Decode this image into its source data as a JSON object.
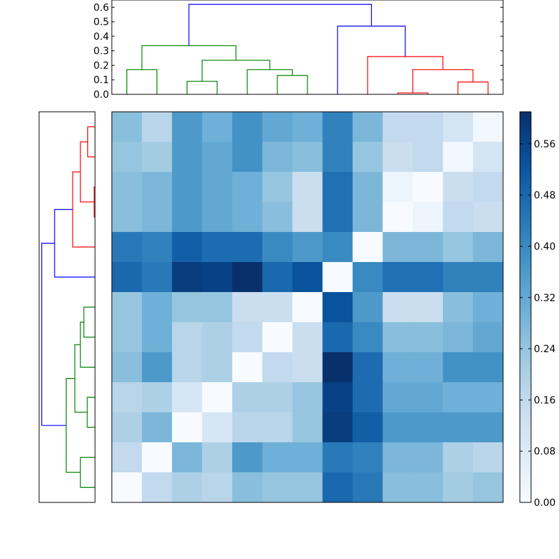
{
  "chart_data": {
    "type": "heatmap",
    "title": "",
    "matrix": [
      [
        0.26,
        0.18,
        0.36,
        0.3,
        0.38,
        0.32,
        0.3,
        0.42,
        0.28,
        0.16,
        0.16,
        0.11,
        0.02
      ],
      [
        0.24,
        0.22,
        0.36,
        0.32,
        0.38,
        0.28,
        0.26,
        0.42,
        0.24,
        0.14,
        0.16,
        0.02,
        0.11
      ],
      [
        0.26,
        0.28,
        0.36,
        0.32,
        0.3,
        0.24,
        0.14,
        0.46,
        0.28,
        0.03,
        0.0,
        0.14,
        0.16
      ],
      [
        0.26,
        0.28,
        0.36,
        0.32,
        0.3,
        0.26,
        0.14,
        0.46,
        0.28,
        0.0,
        0.03,
        0.16,
        0.14
      ],
      [
        0.44,
        0.42,
        0.5,
        0.47,
        0.47,
        0.4,
        0.36,
        0.4,
        0.0,
        0.28,
        0.28,
        0.24,
        0.28
      ],
      [
        0.48,
        0.44,
        0.58,
        0.57,
        0.61,
        0.48,
        0.53,
        0.0,
        0.4,
        0.46,
        0.46,
        0.42,
        0.42
      ],
      [
        0.24,
        0.3,
        0.24,
        0.24,
        0.14,
        0.14,
        0.0,
        0.53,
        0.36,
        0.14,
        0.14,
        0.26,
        0.3
      ],
      [
        0.24,
        0.3,
        0.18,
        0.2,
        0.16,
        0.0,
        0.14,
        0.48,
        0.4,
        0.26,
        0.26,
        0.28,
        0.32
      ],
      [
        0.26,
        0.36,
        0.18,
        0.2,
        0.0,
        0.16,
        0.14,
        0.61,
        0.47,
        0.3,
        0.3,
        0.38,
        0.38
      ],
      [
        0.18,
        0.2,
        0.1,
        0.0,
        0.2,
        0.2,
        0.24,
        0.57,
        0.47,
        0.32,
        0.32,
        0.3,
        0.3
      ],
      [
        0.2,
        0.28,
        0.0,
        0.1,
        0.18,
        0.18,
        0.24,
        0.58,
        0.5,
        0.36,
        0.36,
        0.36,
        0.36
      ],
      [
        0.16,
        0.0,
        0.28,
        0.2,
        0.36,
        0.3,
        0.3,
        0.44,
        0.42,
        0.28,
        0.28,
        0.2,
        0.18
      ],
      [
        0.0,
        0.16,
        0.2,
        0.18,
        0.26,
        0.24,
        0.24,
        0.48,
        0.44,
        0.26,
        0.26,
        0.22,
        0.24
      ]
    ],
    "colorbar": {
      "min": 0.0,
      "max": 0.61,
      "ticks": [
        0.0,
        0.08,
        0.16,
        0.24,
        0.32,
        0.4,
        0.48,
        0.56
      ],
      "tick_labels": [
        "0.00",
        "0.08",
        "0.16",
        "0.24",
        "0.32",
        "0.40",
        "0.48",
        "0.56"
      ],
      "colormap": "Blues"
    },
    "top_dendrogram": {
      "ylim": [
        0.0,
        0.65
      ],
      "ticks": [
        0.0,
        0.1,
        0.2,
        0.3,
        0.4,
        0.5,
        0.6
      ],
      "tick_labels": [
        "0.0",
        "0.1",
        "0.2",
        "0.3",
        "0.4",
        "0.5",
        "0.6"
      ],
      "merges": [
        {
          "x1": 0.5,
          "x2": 1.5,
          "h1": 0,
          "h2": 0,
          "h": 0.17,
          "color": "#008000"
        },
        {
          "x1": 2.5,
          "x2": 3.5,
          "h1": 0,
          "h2": 0,
          "h": 0.09,
          "color": "#008000"
        },
        {
          "x1": 5.5,
          "x2": 6.5,
          "h1": 0,
          "h2": 0,
          "h": 0.13,
          "color": "#008000"
        },
        {
          "x1": 4.5,
          "x2": 6.0,
          "h1": 0,
          "h2": 0.13,
          "h": 0.17,
          "color": "#008000"
        },
        {
          "x1": 3.0,
          "x2": 5.25,
          "h1": 0.09,
          "h2": 0.17,
          "h": 0.235,
          "color": "#008000"
        },
        {
          "x1": 1.0,
          "x2": 4.125,
          "h1": 0.17,
          "h2": 0.235,
          "h": 0.335,
          "color": "#008000"
        },
        {
          "x1": 9.5,
          "x2": 10.5,
          "h1": 0,
          "h2": 0,
          "h": 0.01,
          "color": "#ff0000"
        },
        {
          "x1": 10.0,
          "x2": 12.0,
          "h1": 0.01,
          "h2": 0.085,
          "h": 0.17,
          "color": "#ff0000"
        },
        {
          "x1": 11.5,
          "x2": 12.5,
          "h1": 0,
          "h2": 0,
          "h": 0.085,
          "color": "#ff0000"
        },
        {
          "x1": 8.5,
          "x2": 11.0,
          "h1": 0,
          "h2": 0.17,
          "h": 0.26,
          "color": "#ff0000"
        },
        {
          "x1": 7.5,
          "x2": 9.75,
          "h1": 0,
          "h2": 0.26,
          "h": 0.47,
          "color": "#0000ff"
        },
        {
          "x1": 2.5625,
          "x2": 8.625,
          "h1": 0.335,
          "h2": 0.47,
          "h": 0.62,
          "color": "#0000ff"
        }
      ]
    },
    "left_dendrogram": {
      "xlim": [
        0.65,
        0.0
      ],
      "merges": [
        {
          "y1": 12.5,
          "y2": 11.5,
          "h1": 0,
          "h2": 0,
          "h": 0.17,
          "color": "#008000"
        },
        {
          "y1": 10.5,
          "y2": 9.5,
          "h1": 0,
          "h2": 0,
          "h": 0.09,
          "color": "#008000"
        },
        {
          "y1": 7.5,
          "y2": 6.5,
          "h1": 0,
          "h2": 0,
          "h": 0.13,
          "color": "#008000"
        },
        {
          "y1": 8.5,
          "y2": 7.0,
          "h1": 0,
          "h2": 0.13,
          "h": 0.17,
          "color": "#008000"
        },
        {
          "y1": 10.0,
          "y2": 7.75,
          "h1": 0.09,
          "h2": 0.17,
          "h": 0.235,
          "color": "#008000"
        },
        {
          "y1": 12.0,
          "y2": 8.875,
          "h1": 0.17,
          "h2": 0.235,
          "h": 0.335,
          "color": "#008000"
        },
        {
          "y1": 3.5,
          "y2": 2.5,
          "h1": 0,
          "h2": 0,
          "h": 0.01,
          "color": "#ff0000"
        },
        {
          "y1": 1.5,
          "y2": 0.5,
          "h1": 0,
          "h2": 0,
          "h": 0.085,
          "color": "#ff0000"
        },
        {
          "y1": 3.0,
          "y2": 1.0,
          "h1": 0.01,
          "h2": 0.085,
          "h": 0.17,
          "color": "#ff0000"
        },
        {
          "y1": 4.5,
          "y2": 2.0,
          "h1": 0,
          "h2": 0.17,
          "h": 0.26,
          "color": "#ff0000"
        },
        {
          "y1": 5.5,
          "y2": 3.25,
          "h1": 0,
          "h2": 0.26,
          "h": 0.47,
          "color": "#0000ff"
        },
        {
          "y1": 10.4375,
          "y2": 4.375,
          "h1": 0.335,
          "h2": 0.47,
          "h": 0.62,
          "color": "#0000ff"
        }
      ]
    }
  }
}
